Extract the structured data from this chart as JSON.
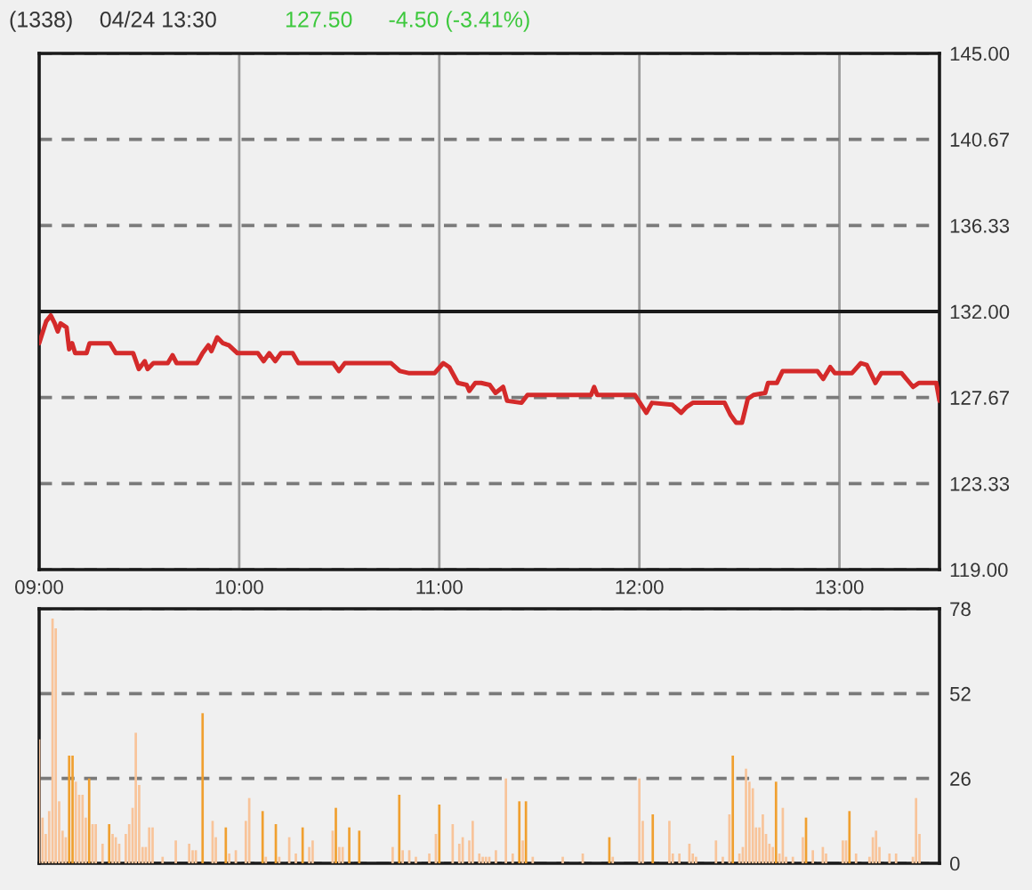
{
  "chart_data": [
    {
      "type": "line",
      "title": "(1338)",
      "subtitle": "04/24 13:30",
      "annotations": [
        "127.50",
        "-4.50 (-3.41%)"
      ],
      "color": "#d42a2a",
      "x": [
        9.0,
        9.035,
        9.058,
        9.078,
        9.093,
        9.107,
        9.137,
        9.15,
        9.165,
        9.18,
        9.237,
        9.252,
        9.354,
        9.383,
        9.47,
        9.498,
        9.528,
        9.542,
        9.571,
        9.643,
        9.667,
        9.687,
        9.789,
        9.817,
        9.846,
        9.861,
        9.89,
        9.919,
        9.948,
        9.991,
        10.093,
        10.122,
        10.15,
        10.18,
        10.209,
        10.267,
        10.296,
        10.47,
        10.498,
        10.528,
        10.759,
        10.803,
        10.846,
        10.977,
        11.02,
        11.05,
        11.093,
        11.137,
        11.15,
        11.18,
        11.209,
        11.252,
        11.281,
        11.319,
        11.339,
        11.411,
        11.441,
        11.759,
        11.774,
        11.789,
        11.977,
        12.035,
        12.063,
        12.165,
        12.209,
        12.237,
        12.267,
        12.324,
        12.426,
        12.455,
        12.484,
        12.513,
        12.542,
        12.571,
        12.629,
        12.643,
        12.687,
        12.716,
        12.89,
        12.919,
        12.954,
        12.977,
        13.063,
        13.107,
        13.137,
        13.18,
        13.209,
        13.31,
        13.368,
        13.397,
        13.441,
        13.484,
        13.5
      ],
      "values": [
        130.4,
        131.5,
        131.8,
        131.4,
        131.0,
        131.4,
        131.2,
        130.1,
        130.4,
        129.9,
        129.9,
        130.4,
        130.4,
        129.9,
        129.9,
        129.1,
        129.5,
        129.1,
        129.4,
        129.4,
        129.8,
        129.4,
        129.4,
        129.9,
        130.3,
        130.0,
        130.7,
        130.4,
        130.3,
        129.9,
        129.9,
        129.5,
        129.9,
        129.5,
        129.9,
        129.9,
        129.4,
        129.4,
        129.0,
        129.4,
        129.4,
        129.0,
        128.9,
        128.9,
        129.4,
        129.2,
        128.4,
        128.3,
        128.0,
        128.4,
        128.4,
        128.3,
        127.9,
        128.2,
        127.5,
        127.4,
        127.8,
        127.8,
        128.2,
        127.8,
        127.8,
        126.9,
        127.4,
        127.3,
        126.9,
        127.2,
        127.4,
        127.4,
        127.4,
        126.8,
        126.4,
        126.4,
        127.6,
        127.8,
        127.9,
        128.4,
        128.4,
        129.0,
        129.0,
        128.6,
        129.2,
        128.9,
        128.9,
        129.4,
        129.3,
        128.4,
        128.9,
        128.9,
        128.2,
        128.4,
        128.4,
        128.4,
        127.5
      ],
      "xlim": [
        9,
        13.5
      ],
      "xticks": [
        {
          "value": 9,
          "label": "09:00"
        },
        {
          "value": 10,
          "label": "10:00"
        },
        {
          "value": 11,
          "label": "11:00"
        },
        {
          "value": 12,
          "label": "12:00"
        },
        {
          "value": 13,
          "label": "13:00"
        }
      ],
      "ylim": [
        119,
        145
      ],
      "yticks": [
        {
          "value": 119,
          "label": "119.00"
        },
        {
          "value": 123.33,
          "label": "123.33"
        },
        {
          "value": 127.67,
          "label": "127.67"
        },
        {
          "value": 132,
          "label": "132.00"
        },
        {
          "value": 136.33,
          "label": "136.33"
        },
        {
          "value": 140.67,
          "label": "140.67"
        },
        {
          "value": 145,
          "label": "145.00"
        }
      ],
      "grid": true,
      "ref_lines": [
        {
          "axis": "y",
          "value": 132,
          "color": "#1a1a1a"
        }
      ]
    },
    {
      "type": "bar",
      "tick_labels": "y",
      "xlim": [
        9,
        13.5
      ],
      "ylim": [
        0,
        78
      ],
      "yticks": [
        0,
        26,
        52,
        78
      ],
      "grid": "y",
      "x": [
        9.0,
        9.017,
        9.033,
        9.05,
        9.067,
        9.083,
        9.1,
        9.117,
        9.133,
        9.15,
        9.167,
        9.183,
        9.2,
        9.217,
        9.233,
        9.25,
        9.267,
        9.283,
        9.317,
        9.35,
        9.367,
        9.383,
        9.4,
        9.433,
        9.45,
        9.467,
        9.483,
        9.5,
        9.517,
        9.533,
        9.55,
        9.567,
        9.617,
        9.683,
        9.75,
        9.767,
        9.783,
        9.817,
        9.867,
        9.883,
        9.933,
        9.95,
        9.983,
        10.033,
        10.05,
        10.117,
        10.133,
        10.183,
        10.2,
        10.25,
        10.283,
        10.317,
        10.35,
        10.367,
        10.467,
        10.483,
        10.5,
        10.517,
        10.55,
        10.6,
        10.767,
        10.8,
        10.817,
        10.85,
        10.883,
        10.95,
        10.983,
        11.0,
        11.067,
        11.1,
        11.117,
        11.15,
        11.167,
        11.2,
        11.217,
        11.233,
        11.25,
        11.283,
        11.333,
        11.367,
        11.4,
        11.417,
        11.433,
        11.467,
        11.617,
        11.717,
        11.85,
        11.867,
        12.0,
        12.017,
        12.067,
        12.15,
        12.167,
        12.2,
        12.25,
        12.267,
        12.283,
        12.383,
        12.417,
        12.45,
        12.467,
        12.5,
        12.517,
        12.533,
        12.55,
        12.567,
        12.583,
        12.6,
        12.617,
        12.633,
        12.65,
        12.667,
        12.683,
        12.7,
        12.717,
        12.733,
        12.767,
        12.817,
        12.833,
        12.867,
        12.917,
        12.933,
        13.017,
        13.033,
        13.05,
        13.083,
        13.15,
        13.167,
        13.183,
        13.2,
        13.25,
        13.283,
        13.367,
        13.383,
        13.4
      ],
      "values": [
        38,
        14,
        9,
        16,
        75,
        72,
        19,
        10,
        8,
        33,
        33,
        25,
        21,
        21,
        14,
        26,
        12,
        12,
        6,
        12,
        9,
        8,
        6,
        9,
        12,
        17,
        40,
        24,
        5,
        5,
        11,
        11,
        2,
        7,
        6,
        4,
        4,
        46,
        13,
        8,
        11,
        3,
        4,
        13,
        20,
        16,
        2,
        12,
        2,
        8,
        3,
        11,
        5,
        7,
        10,
        17,
        5,
        5,
        11,
        10,
        5,
        21,
        4,
        4,
        2,
        3,
        9,
        18,
        12,
        6,
        8,
        7,
        13,
        3,
        2,
        2,
        2,
        4,
        26,
        3,
        19,
        7,
        19,
        2,
        2,
        3,
        8,
        2,
        26,
        13,
        15,
        13,
        3,
        3,
        6,
        3,
        2,
        7,
        2,
        15,
        33,
        3,
        5,
        29,
        25,
        23,
        11,
        11,
        15,
        9,
        6,
        5,
        25,
        3,
        17,
        2,
        2,
        8,
        14,
        4,
        5,
        3,
        7,
        7,
        16,
        3,
        2,
        8,
        10,
        5,
        3,
        3,
        2,
        20,
        9
      ],
      "colors": [
        "#f8c49a",
        "#f8c49a",
        "#f8c49a",
        "#f8c49a",
        "#f8c49a",
        "#f8c49a",
        "#f8c49a",
        "#f8c49a",
        "#f8c49a",
        "#f0a030",
        "#f0a030",
        "#f8c49a",
        "#f8c49a",
        "#f8c49a",
        "#f8c49a",
        "#f0a030",
        "#f8c49a",
        "#f8c49a",
        "#f8c49a",
        "#f0a030",
        "#f8c49a",
        "#f8c49a",
        "#f8c49a",
        "#f8c49a",
        "#f8c49a",
        "#f8c49a",
        "#f8c49a",
        "#f8c49a",
        "#f8c49a",
        "#f8c49a",
        "#f8c49a",
        "#f8c49a",
        "#f8c49a",
        "#f8c49a",
        "#f8c49a",
        "#f8c49a",
        "#f8c49a",
        "#f0a030",
        "#f8c49a",
        "#f8c49a",
        "#f0a030",
        "#f8c49a",
        "#f8c49a",
        "#f8c49a",
        "#f8c49a",
        "#f0a030",
        "#f8c49a",
        "#f0a030",
        "#f8c49a",
        "#f8c49a",
        "#f8c49a",
        "#f0a030",
        "#f8c49a",
        "#f8c49a",
        "#f8c49a",
        "#f0a030",
        "#f8c49a",
        "#f8c49a",
        "#f0a030",
        "#f0a030",
        "#f8c49a",
        "#f0a030",
        "#f8c49a",
        "#f8c49a",
        "#f8c49a",
        "#f8c49a",
        "#f8c49a",
        "#f0a030",
        "#f8c49a",
        "#f8c49a",
        "#f8c49a",
        "#f8c49a",
        "#f8c49a",
        "#f8c49a",
        "#f8c49a",
        "#f8c49a",
        "#f8c49a",
        "#f8c49a",
        "#f8c49a",
        "#f8c49a",
        "#f0a030",
        "#f8c49a",
        "#f0a030",
        "#f8c49a",
        "#f8c49a",
        "#f8c49a",
        "#f0a030",
        "#f8c49a",
        "#f8c49a",
        "#f8c49a",
        "#f0a030",
        "#f8c49a",
        "#f8c49a",
        "#f8c49a",
        "#f8c49a",
        "#f8c49a",
        "#f8c49a",
        "#f8c49a",
        "#f8c49a",
        "#f8c49a",
        "#f0a030",
        "#f8c49a",
        "#f8c49a",
        "#f8c49a",
        "#f8c49a",
        "#f8c49a",
        "#f8c49a",
        "#f8c49a",
        "#f8c49a",
        "#f8c49a",
        "#f8c49a",
        "#f8c49a",
        "#f0a030",
        "#f8c49a",
        "#f8c49a",
        "#f8c49a",
        "#f8c49a",
        "#f8c49a",
        "#f0a030",
        "#f8c49a",
        "#f8c49a",
        "#f8c49a",
        "#f8c49a",
        "#f8c49a",
        "#f0a030",
        "#f8c49a",
        "#f8c49a",
        "#f8c49a",
        "#f8c49a",
        "#f8c49a",
        "#f8c49a",
        "#f8c49a",
        "#f8c49a",
        "#f8c49a",
        "#f8c49a"
      ]
    }
  ]
}
